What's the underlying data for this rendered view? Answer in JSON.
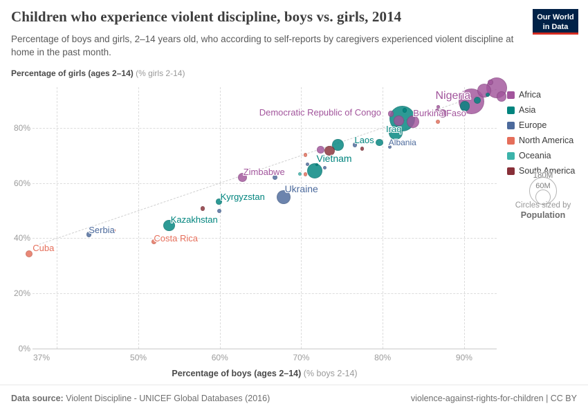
{
  "header": {
    "title": "Children who experience violent discipline, boys vs. girls, 2014",
    "subtitle": "Percentage of boys and girls, 2–14 years old, who according to self-reports by caregivers experienced violent discipline at home in the past month.",
    "logo_line1": "Our World",
    "logo_line2": "in Data"
  },
  "chart_data": {
    "type": "scatter",
    "title": "Children who experience violent discipline, boys vs. girls, 2014",
    "xlabel_bold": "Percentage of boys (ages 2–14)",
    "xlabel_light": " (% boys 2-14)",
    "ylabel_bold": "Percentage of girls (ages 2–14)",
    "ylabel_light": " (% girls 2-14)",
    "xlim": [
      37,
      94
    ],
    "ylim": [
      0,
      97.5
    ],
    "x_ticks": [
      {
        "value": 37,
        "label": "37%"
      },
      {
        "value": 50,
        "label": "50%"
      },
      {
        "value": 60,
        "label": "60%"
      },
      {
        "value": 70,
        "label": "70%"
      },
      {
        "value": 80,
        "label": "80%"
      },
      {
        "value": 90,
        "label": "90%"
      }
    ],
    "y_ticks": [
      {
        "value": 0,
        "label": "0%"
      },
      {
        "value": 20,
        "label": "20%"
      },
      {
        "value": 40,
        "label": "40%"
      },
      {
        "value": 60,
        "label": "60%"
      },
      {
        "value": 80,
        "label": "80%"
      }
    ],
    "grid_x_values": [
      40,
      50,
      60,
      70,
      80,
      90
    ],
    "parity_line": {
      "x1": 37,
      "y1": 37,
      "x2": 94,
      "y2": 94
    },
    "sized_by": "Population",
    "series": [
      {
        "name": "Africa",
        "color": "#a2559c",
        "points": [
          {
            "x": 62.8,
            "y": 62.1,
            "r": 6.7,
            "label": "Zimbabwe",
            "dx": 1,
            "dy": -15,
            "fs": 13
          },
          {
            "x": 72.4,
            "y": 72.1,
            "r": 5.3
          },
          {
            "x": 81.0,
            "y": 85.1,
            "r": 4.3
          },
          {
            "x": 82.0,
            "y": 82.6,
            "r": 7.3
          },
          {
            "x": 83.7,
            "y": 82.2,
            "r": 9.0,
            "label": "Democratic Republic of Congo",
            "dx": -222,
            "dy": -21,
            "fs": 13
          },
          {
            "x": 86.7,
            "y": 86.2,
            "r": 3.0
          },
          {
            "x": 86.8,
            "y": 87.6,
            "r": 2.3
          },
          {
            "x": 87.4,
            "y": 85.1,
            "r": 6.0,
            "label": "Burkina Faso",
            "dx": -43,
            "dy": -8,
            "fs": 13
          },
          {
            "x": 90.9,
            "y": 89.6,
            "r": 18.3,
            "label": "Nigeria",
            "dx": -52,
            "dy": -17,
            "fs": 16
          },
          {
            "x": 92.5,
            "y": 93.4,
            "r": 10.0
          },
          {
            "x": 94.0,
            "y": 94.6,
            "r": 15.0
          },
          {
            "x": 94.6,
            "y": 91.4,
            "r": 7.3
          },
          {
            "x": 93.2,
            "y": 96.5,
            "r": 4.0
          }
        ]
      },
      {
        "name": "Asia",
        "color": "#00847e",
        "points": [
          {
            "x": 53.8,
            "y": 44.6,
            "r": 8.3,
            "label": "Kazakhstan",
            "dx": 2,
            "dy": -16,
            "fs": 13
          },
          {
            "x": 59.9,
            "y": 53.3,
            "r": 4.3,
            "label": "Kyrgyzstan",
            "dx": 2,
            "dy": -14,
            "fs": 13
          },
          {
            "x": 71.7,
            "y": 64.5,
            "r": 11.0,
            "label": "Vietnam",
            "dx": 2,
            "dy": -26,
            "fs": 14
          },
          {
            "x": 71.9,
            "y": 66.7,
            "r": 2.3
          },
          {
            "x": 74.5,
            "y": 73.8,
            "r": 8.3
          },
          {
            "x": 79.6,
            "y": 74.7,
            "r": 5.3,
            "label": "Laos",
            "dx": -36,
            "dy": -11,
            "fs": 13
          },
          {
            "x": 81.6,
            "y": 78.1,
            "r": 10.0,
            "label": "Iraq",
            "dx": -14,
            "dy": -13,
            "fs": 13
          },
          {
            "x": 82.4,
            "y": 83.3,
            "r": 18.5
          },
          {
            "x": 82.7,
            "y": 86.3,
            "r": 3.3
          },
          {
            "x": 90.1,
            "y": 87.9,
            "r": 7.3
          },
          {
            "x": 91.6,
            "y": 90.0,
            "r": 5.0
          },
          {
            "x": 92.9,
            "y": 92.1,
            "r": 3.0
          }
        ]
      },
      {
        "name": "Europe",
        "color": "#4c6a9c",
        "points": [
          {
            "x": 43.9,
            "y": 41.4,
            "r": 3.7,
            "label": "Serbia",
            "dx": 0,
            "dy": -14,
            "fs": 13
          },
          {
            "x": 59.9,
            "y": 49.8,
            "r": 3.0
          },
          {
            "x": 66.8,
            "y": 62.0,
            "r": 3.7
          },
          {
            "x": 67.8,
            "y": 54.9,
            "r": 10.0,
            "label": "Ukraine",
            "dx": 2,
            "dy": -20,
            "fs": 14
          },
          {
            "x": 70.8,
            "y": 66.9,
            "r": 2.5
          },
          {
            "x": 72.9,
            "y": 65.6,
            "r": 2.7
          },
          {
            "x": 76.6,
            "y": 73.8,
            "r": 3.3
          },
          {
            "x": 80.9,
            "y": 73.1,
            "r": 2.7,
            "label": "Albania",
            "dx": -2,
            "dy": -13,
            "fs": 12
          }
        ]
      },
      {
        "name": "North America",
        "color": "#e56e5a",
        "points": [
          {
            "x": 36.6,
            "y": 34.4,
            "r": 5.0,
            "label": "Cuba",
            "dx": 5,
            "dy": -16,
            "fs": 13
          },
          {
            "x": 47.0,
            "y": 42.9,
            "r": 2.3
          },
          {
            "x": 51.9,
            "y": 38.7,
            "r": 3.3,
            "label": "Costa Rica",
            "dx": 0,
            "dy": -13,
            "fs": 13
          },
          {
            "x": 70.5,
            "y": 70.2,
            "r": 2.7
          },
          {
            "x": 70.5,
            "y": 63.2,
            "r": 2.7
          },
          {
            "x": 86.8,
            "y": 82.2,
            "r": 3.0
          }
        ]
      },
      {
        "name": "Oceania",
        "color": "#3cb3aa",
        "points": [
          {
            "x": 69.8,
            "y": 63.2,
            "r": 2.5
          }
        ]
      },
      {
        "name": "South America",
        "color": "#883039",
        "points": [
          {
            "x": 57.9,
            "y": 50.7,
            "r": 3.3
          },
          {
            "x": 73.5,
            "y": 71.7,
            "r": 7.3
          },
          {
            "x": 77.5,
            "y": 72.4,
            "r": 2.7
          }
        ]
      }
    ]
  },
  "legend": {
    "items": [
      {
        "label": "Africa",
        "color": "#a2559c"
      },
      {
        "label": "Asia",
        "color": "#00847e"
      },
      {
        "label": "Europe",
        "color": "#4c6a9c"
      },
      {
        "label": "North America",
        "color": "#e56e5a"
      },
      {
        "label": "Oceania",
        "color": "#3cb3aa"
      },
      {
        "label": "South America",
        "color": "#883039"
      }
    ]
  },
  "size_legend": {
    "big_label": "180M",
    "small_label": "60M",
    "caption": "Circles sized by",
    "caption_bold": "Population"
  },
  "footer": {
    "source_prefix": "Data source:",
    "source_text": " Violent Discipline - UNICEF Global Databases (2016)",
    "credit": "violence-against-rights-for-children | CC BY"
  }
}
